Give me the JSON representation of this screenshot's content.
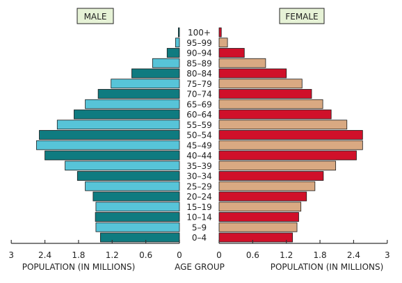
{
  "chart_data": {
    "type": "bar",
    "subtype": "population-pyramid",
    "headers": {
      "left": "MALE",
      "right": "FEMALE"
    },
    "categories": [
      "100+",
      "95-99",
      "90-94",
      "85-89",
      "80-84",
      "75-79",
      "70-74",
      "65-69",
      "60-64",
      "55-59",
      "50-54",
      "45-49",
      "40-44",
      "35-39",
      "30-34",
      "25-29",
      "20-24",
      "15-19",
      "10-14",
      "5-9",
      "0-4"
    ],
    "series": [
      {
        "name": "MALE",
        "values": [
          0.02,
          0.07,
          0.22,
          0.48,
          0.85,
          1.22,
          1.45,
          1.68,
          1.88,
          2.18,
          2.5,
          2.55,
          2.4,
          2.04,
          1.82,
          1.68,
          1.54,
          1.49,
          1.5,
          1.49,
          1.41
        ]
      },
      {
        "name": "FEMALE",
        "values": [
          0.04,
          0.15,
          0.45,
          0.83,
          1.2,
          1.48,
          1.65,
          1.85,
          2.0,
          2.28,
          2.56,
          2.56,
          2.45,
          2.08,
          1.86,
          1.71,
          1.56,
          1.46,
          1.42,
          1.39,
          1.31
        ]
      }
    ],
    "xlim": [
      0,
      3
    ],
    "x_ticks": {
      "left": [
        "3",
        "2.4",
        "1.8",
        "1.2",
        "0.6",
        "0"
      ],
      "right": [
        "0",
        "0.6",
        "1.2",
        "1.8",
        "2.4",
        "3"
      ]
    },
    "tick_values": [
      0,
      0.6,
      1.2,
      1.8,
      2.4,
      3
    ],
    "xlabel_left": "POPULATION (IN MILLIONS)",
    "xlabel_center": "AGE GROUP",
    "xlabel_right": "POPULATION (IN MILLIONS)",
    "colors": {
      "male_a": "#0f7b80",
      "male_b": "#57c4d8",
      "female_a": "#d0102a",
      "female_b": "#d9a982",
      "header_fill": "#e6f2d6",
      "axis": "#333333"
    }
  }
}
